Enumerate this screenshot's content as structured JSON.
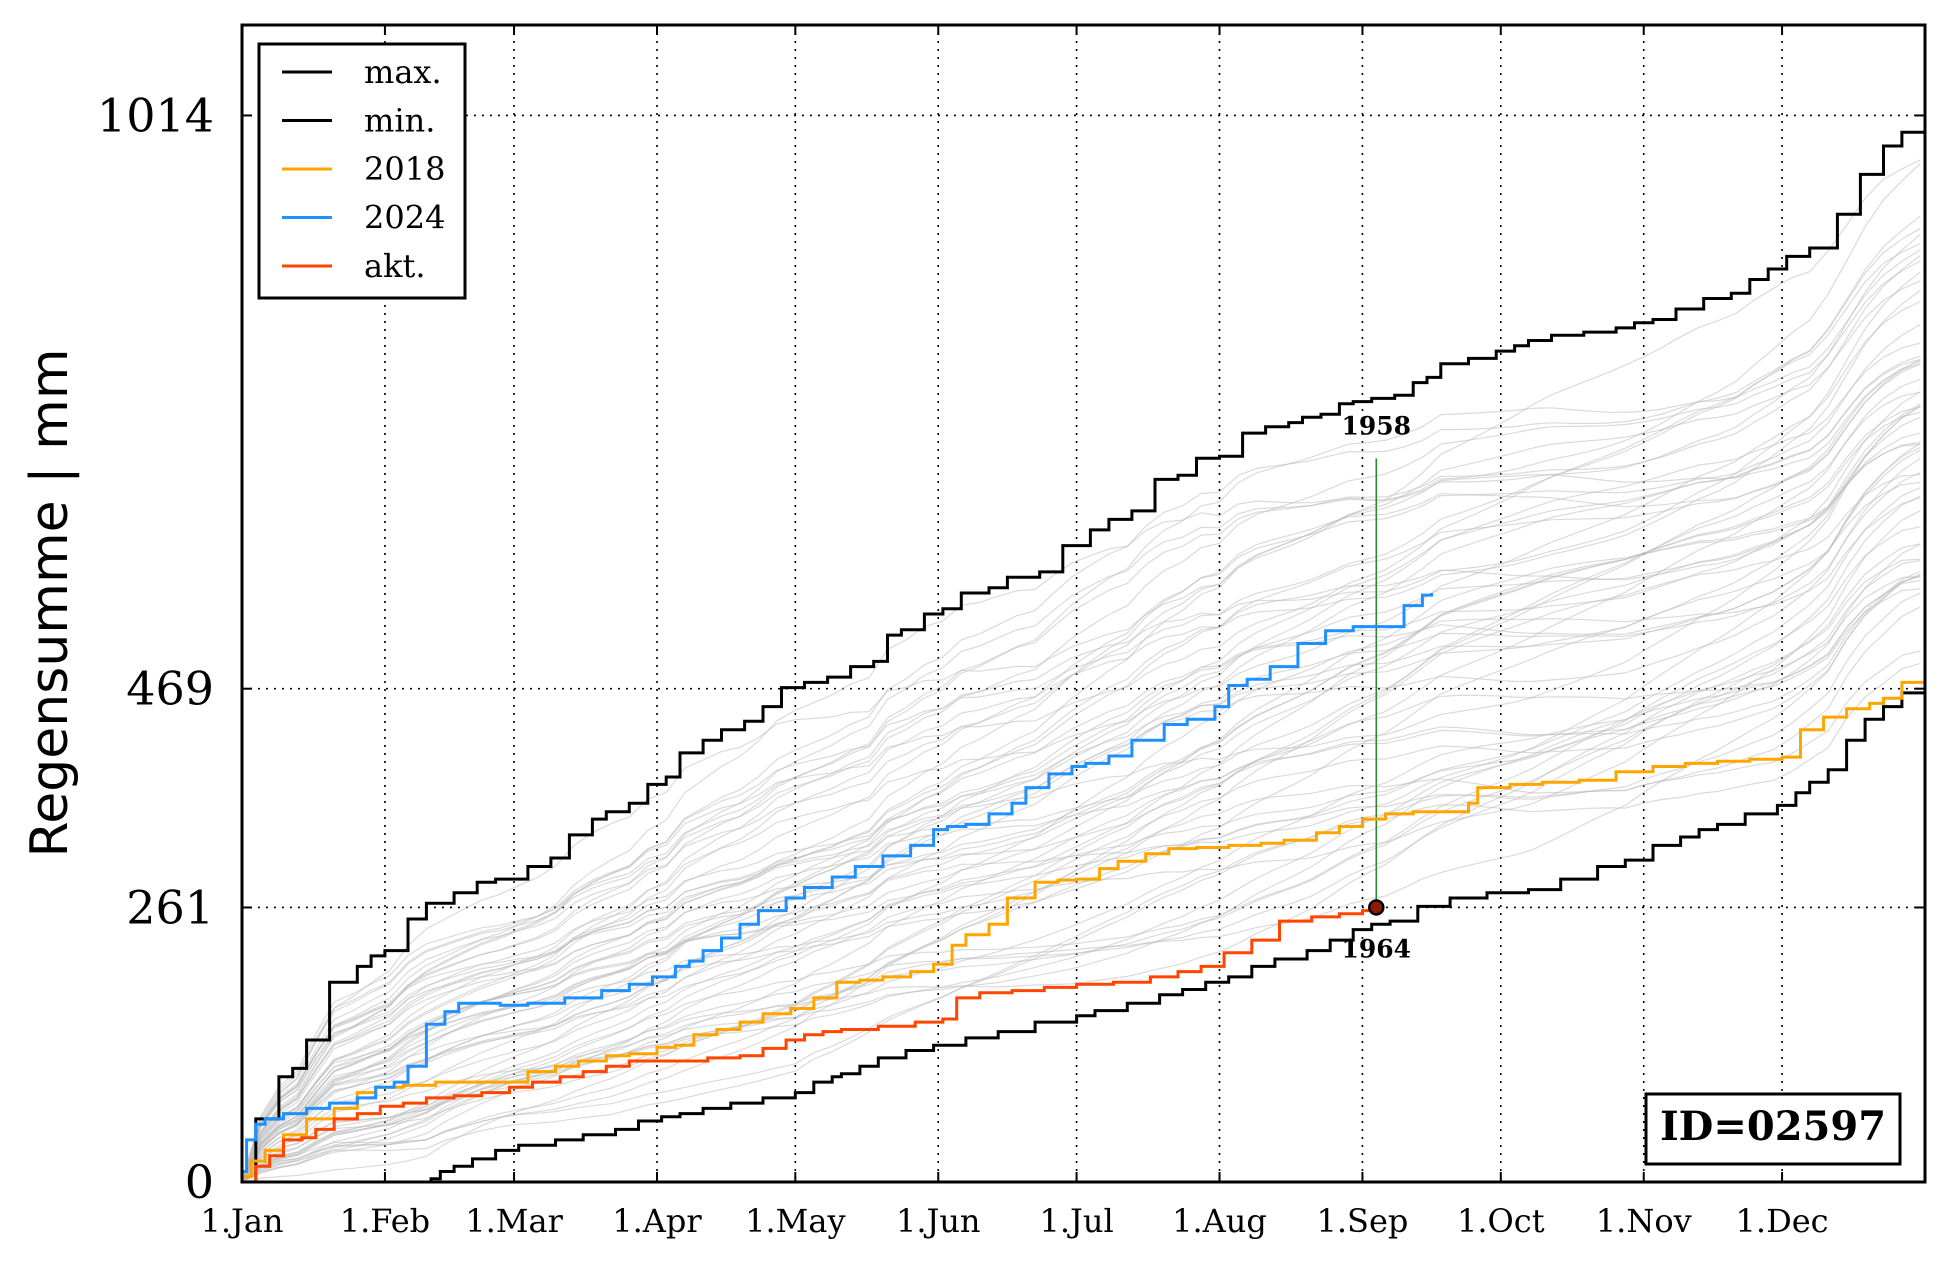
{
  "chart_data": {
    "type": "line",
    "title": "",
    "xlabel": "",
    "ylabel": "Regensumme | mm",
    "xlim": [
      0,
      365
    ],
    "ylim": [
      0,
      1100
    ],
    "x_ticks": [
      {
        "label": "1.Jan",
        "day": 0
      },
      {
        "label": "1.Feb",
        "day": 31
      },
      {
        "label": "1.Mar",
        "day": 59
      },
      {
        "label": "1.Apr",
        "day": 90
      },
      {
        "label": "1.May",
        "day": 120
      },
      {
        "label": "1.Jun",
        "day": 151
      },
      {
        "label": "1.Jul",
        "day": 181
      },
      {
        "label": "1.Aug",
        "day": 212
      },
      {
        "label": "1.Sep",
        "day": 243
      },
      {
        "label": "1.Oct",
        "day": 273
      },
      {
        "label": "1.Nov",
        "day": 304
      },
      {
        "label": "1.Dec",
        "day": 334
      }
    ],
    "y_ticks": [
      0,
      261,
      469,
      1014
    ],
    "grid": "dotted",
    "legend_position": "top-left",
    "legend": [
      {
        "label": "max.",
        "color": "#000000"
      },
      {
        "label": "min.",
        "color": "#000000"
      },
      {
        "label": "2018",
        "color": "#FFA500"
      },
      {
        "label": "2024",
        "color": "#1E90FF"
      },
      {
        "label": "akt.",
        "color": "#FF4500"
      }
    ],
    "series": [
      {
        "name": "max.",
        "color": "#000000",
        "x": [
          0,
          3,
          8,
          11,
          14,
          19,
          25,
          28,
          31,
          36,
          40,
          46,
          51,
          55,
          62,
          67,
          71,
          76,
          79,
          84,
          88,
          92,
          95,
          100,
          104,
          109,
          113,
          117,
          122,
          127,
          132,
          137,
          140,
          143,
          148,
          152,
          156,
          162,
          166,
          173,
          178,
          184,
          188,
          193,
          198,
          203,
          207,
          212,
          217,
          222,
          227,
          230,
          234,
          238,
          241,
          243,
          245,
          250,
          254,
          257,
          260,
          266,
          272,
          276,
          279,
          284,
          291,
          298,
          302,
          306,
          311,
          317,
          323,
          327,
          331,
          335,
          340,
          346,
          351,
          356,
          360,
          365
        ],
        "y": [
          0,
          60,
          100,
          108,
          135,
          190,
          205,
          215,
          220,
          250,
          265,
          275,
          285,
          288,
          300,
          308,
          330,
          345,
          352,
          360,
          378,
          385,
          408,
          420,
          430,
          438,
          452,
          470,
          475,
          480,
          490,
          495,
          520,
          525,
          540,
          545,
          560,
          565,
          575,
          580,
          605,
          620,
          630,
          638,
          668,
          672,
          688,
          690,
          712,
          718,
          722,
          727,
          730,
          740,
          742,
          742,
          745,
          748,
          760,
          765,
          778,
          783,
          790,
          795,
          800,
          805,
          808,
          812,
          817,
          820,
          830,
          840,
          845,
          858,
          868,
          880,
          888,
          920,
          958,
          985,
          998,
          1014
        ]
      },
      {
        "name": "min.",
        "color": "#000000",
        "x": [
          0,
          20,
          39,
          41,
          43,
          46,
          50,
          55,
          60,
          68,
          74,
          81,
          86,
          91,
          95,
          100,
          106,
          113,
          120,
          124,
          128,
          130,
          134,
          138,
          144,
          150,
          157,
          164,
          172,
          181,
          185,
          192,
          199,
          204,
          209,
          214,
          219,
          224,
          231,
          236,
          241,
          245,
          249,
          255,
          262,
          270,
          279,
          286,
          294,
          300,
          306,
          312,
          316,
          320,
          326,
          333,
          337,
          340,
          344,
          348,
          352,
          356,
          360,
          365
        ],
        "y": [
          0,
          0,
          0,
          3,
          10,
          15,
          22,
          30,
          35,
          40,
          45,
          50,
          58,
          62,
          65,
          70,
          75,
          80,
          85,
          95,
          100,
          103,
          110,
          118,
          125,
          130,
          137,
          143,
          152,
          158,
          163,
          170,
          178,
          183,
          190,
          195,
          205,
          212,
          220,
          230,
          240,
          245,
          248,
          262,
          270,
          275,
          278,
          288,
          300,
          306,
          320,
          328,
          335,
          340,
          350,
          358,
          370,
          380,
          392,
          420,
          440,
          452,
          465,
          469
        ]
      },
      {
        "name": "2018",
        "color": "#FFA500",
        "x": [
          0,
          2,
          5,
          9,
          14,
          20,
          25,
          29,
          35,
          42,
          49,
          56,
          62,
          68,
          73,
          79,
          84,
          90,
          94,
          98,
          103,
          108,
          113,
          119,
          124,
          129,
          134,
          139,
          145,
          150,
          154,
          157,
          162,
          166,
          172,
          177,
          181,
          186,
          190,
          196,
          201,
          207,
          214,
          221,
          226,
          233,
          238,
          243,
          248,
          254,
          260,
          266,
          268,
          275,
          282,
          290,
          298,
          306,
          313,
          320,
          327,
          334,
          338,
          343,
          348,
          353,
          356,
          360,
          365
        ],
        "y": [
          5,
          20,
          30,
          45,
          60,
          70,
          85,
          90,
          92,
          95,
          95,
          95,
          105,
          110,
          115,
          120,
          122,
          128,
          130,
          140,
          145,
          152,
          160,
          165,
          175,
          190,
          192,
          195,
          200,
          207,
          225,
          235,
          245,
          270,
          285,
          287,
          288,
          298,
          305,
          312,
          317,
          318,
          320,
          322,
          325,
          332,
          338,
          345,
          350,
          352,
          352,
          360,
          375,
          378,
          380,
          382,
          390,
          395,
          398,
          400,
          402,
          404,
          430,
          442,
          450,
          455,
          460,
          475,
          478
        ]
      },
      {
        "name": "2024",
        "color": "#1E90FF",
        "x": [
          0,
          1,
          3,
          5,
          9,
          14,
          19,
          25,
          29,
          33,
          36,
          40,
          44,
          47,
          52,
          56,
          62,
          70,
          78,
          84,
          89,
          94,
          97,
          100,
          104,
          108,
          112,
          118,
          122,
          128,
          133,
          139,
          145,
          150,
          153,
          157,
          162,
          167,
          170,
          175,
          180,
          183,
          188,
          193,
          200,
          205,
          211,
          214,
          218,
          223,
          229,
          235,
          241,
          249,
          252,
          256,
          258
        ],
        "y": [
          10,
          40,
          55,
          60,
          65,
          70,
          75,
          80,
          90,
          95,
          110,
          150,
          162,
          170,
          170,
          168,
          170,
          175,
          182,
          188,
          195,
          205,
          210,
          220,
          232,
          245,
          258,
          270,
          280,
          290,
          300,
          310,
          320,
          335,
          338,
          340,
          350,
          360,
          375,
          388,
          395,
          398,
          405,
          420,
          435,
          440,
          452,
          472,
          478,
          490,
          512,
          524,
          528,
          528,
          548,
          558,
          560
        ]
      },
      {
        "name": "akt.",
        "color": "#FF4500",
        "x": [
          0,
          3,
          6,
          9,
          13,
          16,
          20,
          25,
          30,
          35,
          40,
          46,
          52,
          58,
          63,
          69,
          74,
          79,
          84,
          89,
          94,
          101,
          108,
          113,
          118,
          122,
          126,
          130,
          138,
          146,
          152,
          155,
          160,
          167,
          174,
          181,
          189,
          197,
          203,
          208,
          213,
          219,
          225,
          232,
          238,
          243,
          246
        ],
        "y": [
          0,
          15,
          25,
          40,
          42,
          50,
          60,
          65,
          72,
          75,
          80,
          82,
          85,
          90,
          95,
          100,
          105,
          110,
          115,
          115,
          115,
          118,
          120,
          127,
          135,
          140,
          143,
          145,
          148,
          152,
          155,
          175,
          180,
          182,
          185,
          188,
          190,
          195,
          200,
          205,
          218,
          230,
          248,
          252,
          255,
          258,
          261
        ]
      }
    ],
    "annotations": [
      {
        "text": "1958",
        "x": 246,
        "y": 688
      },
      {
        "text": "1964",
        "x": 246,
        "y": 261
      },
      {
        "text": "ID=02597"
      }
    ],
    "current_point": {
      "x": 246,
      "y": 261
    },
    "background_years_color": "#BBBBBB"
  }
}
